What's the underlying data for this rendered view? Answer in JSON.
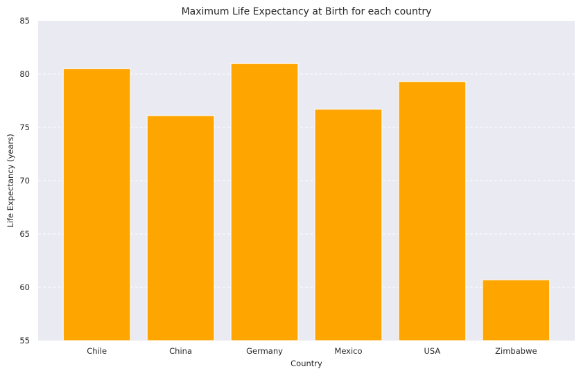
{
  "chart_data": {
    "type": "bar",
    "title": "Maximum Life Expectancy at Birth for each country",
    "xlabel": "Country",
    "ylabel": "Life Expectancy (years)",
    "categories": [
      "Chile",
      "China",
      "Germany",
      "Mexico",
      "USA",
      "Zimbabwe"
    ],
    "values": [
      80.5,
      76.1,
      81.0,
      76.7,
      79.3,
      60.7
    ],
    "ylim": [
      55,
      85
    ],
    "yticks": [
      "55",
      "60",
      "65",
      "70",
      "75",
      "80",
      "85"
    ],
    "grid": true,
    "colors": {
      "bar": "#FFA500",
      "plot_background": "#EAEAF2",
      "grid": "#FFFFFF"
    }
  }
}
